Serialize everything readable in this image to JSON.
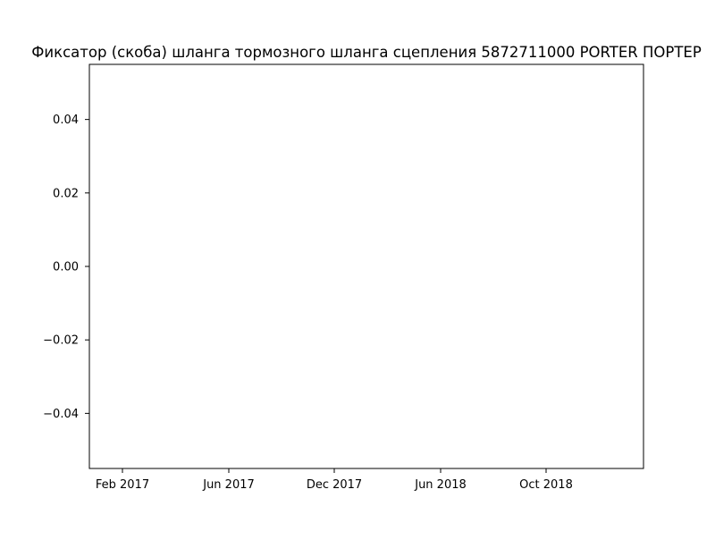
{
  "chart_data": {
    "type": "line",
    "title": "Фиксатор (скоба) шланга тормозного шланга сцепления 5872711000 PORTER ПОРТЕР",
    "xlabel": "",
    "ylabel": "",
    "x_tick_labels": [
      "Feb 2017",
      "Jun 2017",
      "Dec 2017",
      "Jun 2018",
      "Oct 2018"
    ],
    "y_tick_labels": [
      "0.04",
      "0.02",
      "0.00",
      "−0.02",
      "−0.04"
    ],
    "y_ticks": [
      0.04,
      0.02,
      0.0,
      -0.02,
      -0.04
    ],
    "ylim": [
      -0.055,
      0.055
    ],
    "series": [],
    "grid": false,
    "legend": false,
    "colors": {
      "axes": "#000000",
      "background": "#ffffff"
    }
  }
}
